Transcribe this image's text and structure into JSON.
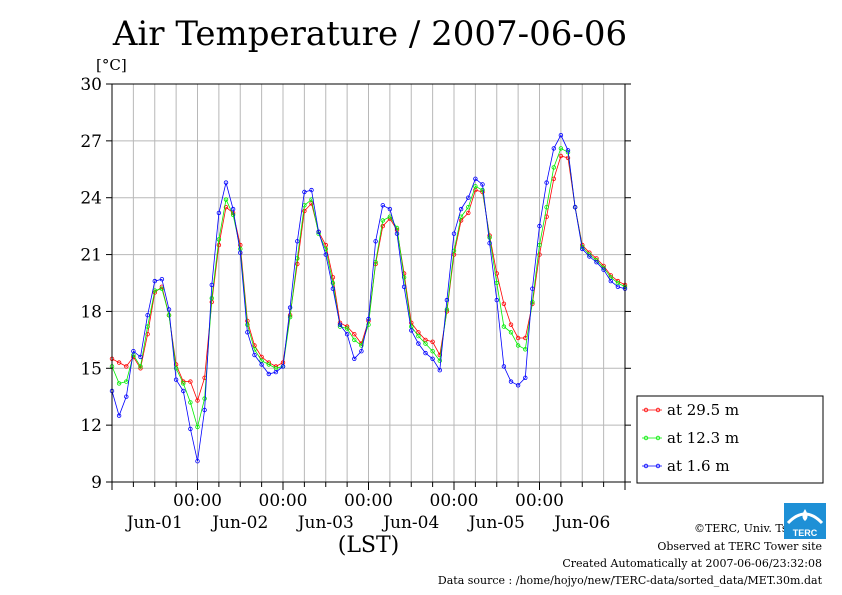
{
  "chart_data": {
    "type": "line",
    "title": "Air Temperature / 2007-06-06",
    "ylabel": "[°C]",
    "xlabel": "(LST)",
    "ylim": [
      9,
      30
    ],
    "yticks": [
      9,
      12,
      15,
      18,
      21,
      24,
      27,
      30
    ],
    "xlim_days": [
      0,
      6
    ],
    "xtick_time_label": "00:00",
    "xtick_date_labels": [
      "Jun-01",
      "Jun-02",
      "Jun-03",
      "Jun-04",
      "Jun-05",
      "Jun-06"
    ],
    "grid": true,
    "legend_position": "right",
    "x_hours_from_start": [
      0,
      2,
      4,
      6,
      8,
      10,
      12,
      14,
      16,
      18,
      20,
      22,
      24,
      26,
      28,
      30,
      32,
      34,
      36,
      38,
      40,
      42,
      44,
      46,
      48,
      50,
      52,
      54,
      56,
      58,
      60,
      62,
      64,
      66,
      68,
      70,
      72,
      74,
      76,
      78,
      80,
      82,
      84,
      86,
      88,
      90,
      92,
      94,
      96,
      98,
      100,
      102,
      104,
      106,
      108,
      110,
      112,
      114,
      116,
      118,
      120,
      122,
      124,
      126,
      128,
      130,
      132,
      134,
      136,
      138,
      140,
      142,
      144
    ],
    "series": [
      {
        "name": "at 29.5 m",
        "color": "#ff0000",
        "values": [
          15.5,
          15.3,
          15.1,
          15.6,
          15.0,
          16.8,
          19.0,
          19.3,
          17.8,
          15.2,
          14.3,
          14.3,
          13.3,
          14.5,
          18.5,
          21.5,
          23.5,
          23.2,
          21.5,
          17.5,
          16.2,
          15.6,
          15.3,
          15.1,
          15.3,
          17.8,
          20.5,
          23.3,
          23.7,
          22.2,
          21.5,
          19.8,
          17.4,
          17.2,
          16.8,
          16.3,
          17.5,
          20.5,
          22.5,
          22.9,
          22.3,
          20.0,
          17.4,
          16.9,
          16.5,
          16.4,
          15.7,
          18.0,
          21.0,
          22.8,
          23.2,
          24.4,
          24.3,
          22.0,
          20.0,
          18.4,
          17.3,
          16.6,
          16.6,
          18.4,
          21.0,
          23.0,
          25.0,
          26.2,
          26.1,
          23.5,
          21.5,
          21.1,
          20.8,
          20.4,
          19.9,
          19.6,
          19.4
        ]
      },
      {
        "name": "at 12.3 m",
        "color": "#00ee00",
        "values": [
          15.1,
          14.2,
          14.3,
          15.7,
          15.1,
          17.2,
          19.1,
          19.2,
          17.8,
          15.0,
          14.2,
          13.2,
          11.9,
          13.4,
          18.7,
          21.8,
          23.9,
          23.1,
          21.3,
          17.3,
          16.0,
          15.4,
          15.2,
          15.0,
          15.1,
          17.7,
          20.8,
          23.6,
          23.9,
          22.1,
          21.3,
          19.5,
          17.2,
          17.1,
          16.5,
          16.2,
          17.3,
          20.6,
          22.8,
          23.0,
          22.4,
          19.8,
          17.2,
          16.7,
          16.3,
          15.9,
          15.4,
          18.1,
          21.2,
          23.0,
          23.5,
          24.6,
          24.4,
          21.9,
          19.5,
          17.2,
          16.9,
          16.2,
          16.0,
          18.5,
          21.5,
          23.5,
          25.6,
          26.6,
          26.4,
          23.5,
          21.4,
          21.0,
          20.7,
          20.3,
          19.8,
          19.5,
          19.3
        ]
      },
      {
        "name": "at 1.6 m",
        "color": "#0000ff",
        "values": [
          13.8,
          12.5,
          13.5,
          15.9,
          15.6,
          17.8,
          19.6,
          19.7,
          18.1,
          14.4,
          13.8,
          11.8,
          10.1,
          12.8,
          19.4,
          23.2,
          24.8,
          23.4,
          21.1,
          16.9,
          15.7,
          15.2,
          14.7,
          14.8,
          15.1,
          18.2,
          21.7,
          24.3,
          24.4,
          22.2,
          21.0,
          19.2,
          17.3,
          16.8,
          15.5,
          15.9,
          17.6,
          21.7,
          23.6,
          23.4,
          22.1,
          19.3,
          17.0,
          16.3,
          15.8,
          15.5,
          14.9,
          18.6,
          22.1,
          23.4,
          24.0,
          25.0,
          24.7,
          21.6,
          18.6,
          15.1,
          14.3,
          14.1,
          14.5,
          19.2,
          22.5,
          24.8,
          26.6,
          27.3,
          26.5,
          23.5,
          21.3,
          20.9,
          20.6,
          20.2,
          19.6,
          19.3,
          19.2
        ]
      }
    ]
  },
  "credits": {
    "copyright": "©TERC, Univ. Tsukuba",
    "observed": "Observed at TERC Tower site",
    "created": "Created Automatically at 2007-06-06/23:32:08",
    "source": "Data source : /home/hojyo/new/TERC-data/sorted_data/MET.30m.dat"
  },
  "logo": {
    "text": "TERC",
    "color": "#1e90d6"
  }
}
